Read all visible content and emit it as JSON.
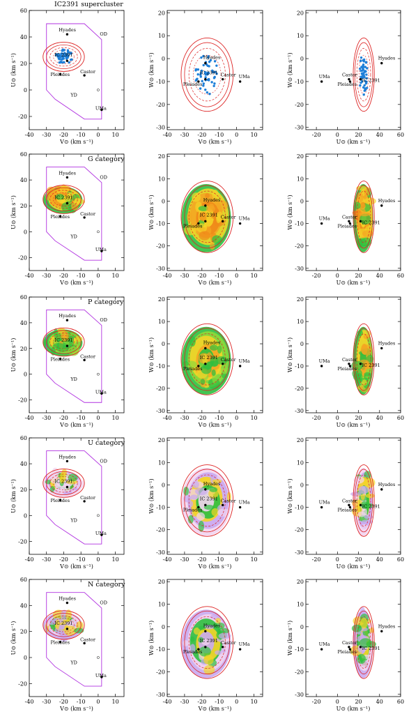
{
  "figure": {
    "row_titles": [
      "IC2391 supercluster",
      "G category",
      "P category",
      "U category",
      "N category"
    ]
  },
  "axes": {
    "vu": {
      "xlabel": "V⊙ (km s⁻¹)",
      "ylabel": "U⊙ (km s⁻¹)",
      "xlim": [
        -40,
        15
      ],
      "ylim": [
        -30,
        60
      ],
      "xticks": [
        -40,
        -30,
        -20,
        -10,
        0,
        10
      ],
      "yticks": [
        -20,
        0,
        20,
        40,
        60
      ]
    },
    "vw": {
      "xlabel": "V⊙ (km s⁻¹)",
      "ylabel": "W⊙ (km s⁻¹)",
      "xlim": [
        -40,
        15
      ],
      "ylim": [
        -31,
        21
      ],
      "xticks": [
        -40,
        -30,
        -20,
        -10,
        0,
        10
      ],
      "yticks": [
        -30,
        -20,
        -10,
        0,
        10,
        20
      ]
    },
    "uw": {
      "xlabel": "U⊙ (km s⁻¹)",
      "ylabel": "W⊙ (km s⁻¹)",
      "xlim": [
        -30,
        60
      ],
      "ylim": [
        -31,
        21
      ],
      "xticks": [
        -20,
        0,
        20,
        40,
        60
      ],
      "yticks": [
        -30,
        -20,
        -10,
        0,
        10,
        20
      ]
    }
  },
  "chart_data": [
    {
      "type": "scatter",
      "title": "IC2391 supercluster",
      "panels": [
        "V-U",
        "V-W",
        "U-W"
      ],
      "groups": {
        "Hyades": {
          "U": 42,
          "V": -18,
          "W": -2
        },
        "Pleiades": {
          "U": 12,
          "V": -22,
          "W": -10
        },
        "Castor": {
          "U": 11,
          "V": -8,
          "W": -9
        },
        "IC 2391": {
          "U": 22,
          "V": -18,
          "W": -9
        },
        "UMa": {
          "U": -15,
          "V": 2,
          "W": -10
        }
      },
      "region_labels": {
        "OD": [
          1,
          41
        ],
        "YD": [
          -16,
          -5
        ]
      },
      "ellipse_center": {
        "U": 25,
        "V": -20,
        "W": -7
      }
    },
    {
      "type": "heatmap",
      "title": "G category"
    },
    {
      "type": "heatmap",
      "title": "P category"
    },
    {
      "type": "heatmap",
      "title": "U category"
    },
    {
      "type": "heatmap",
      "title": "N category"
    }
  ],
  "colors": {
    "ellipse_outer": "#d22",
    "ellipse_dashed": "#d22",
    "polygon": "#b030e0",
    "scatter_point": "#1e7fd8",
    "density_high": "#f4a622",
    "density_mid": "#2fbf3f",
    "density_low": "#c9a9f0"
  }
}
